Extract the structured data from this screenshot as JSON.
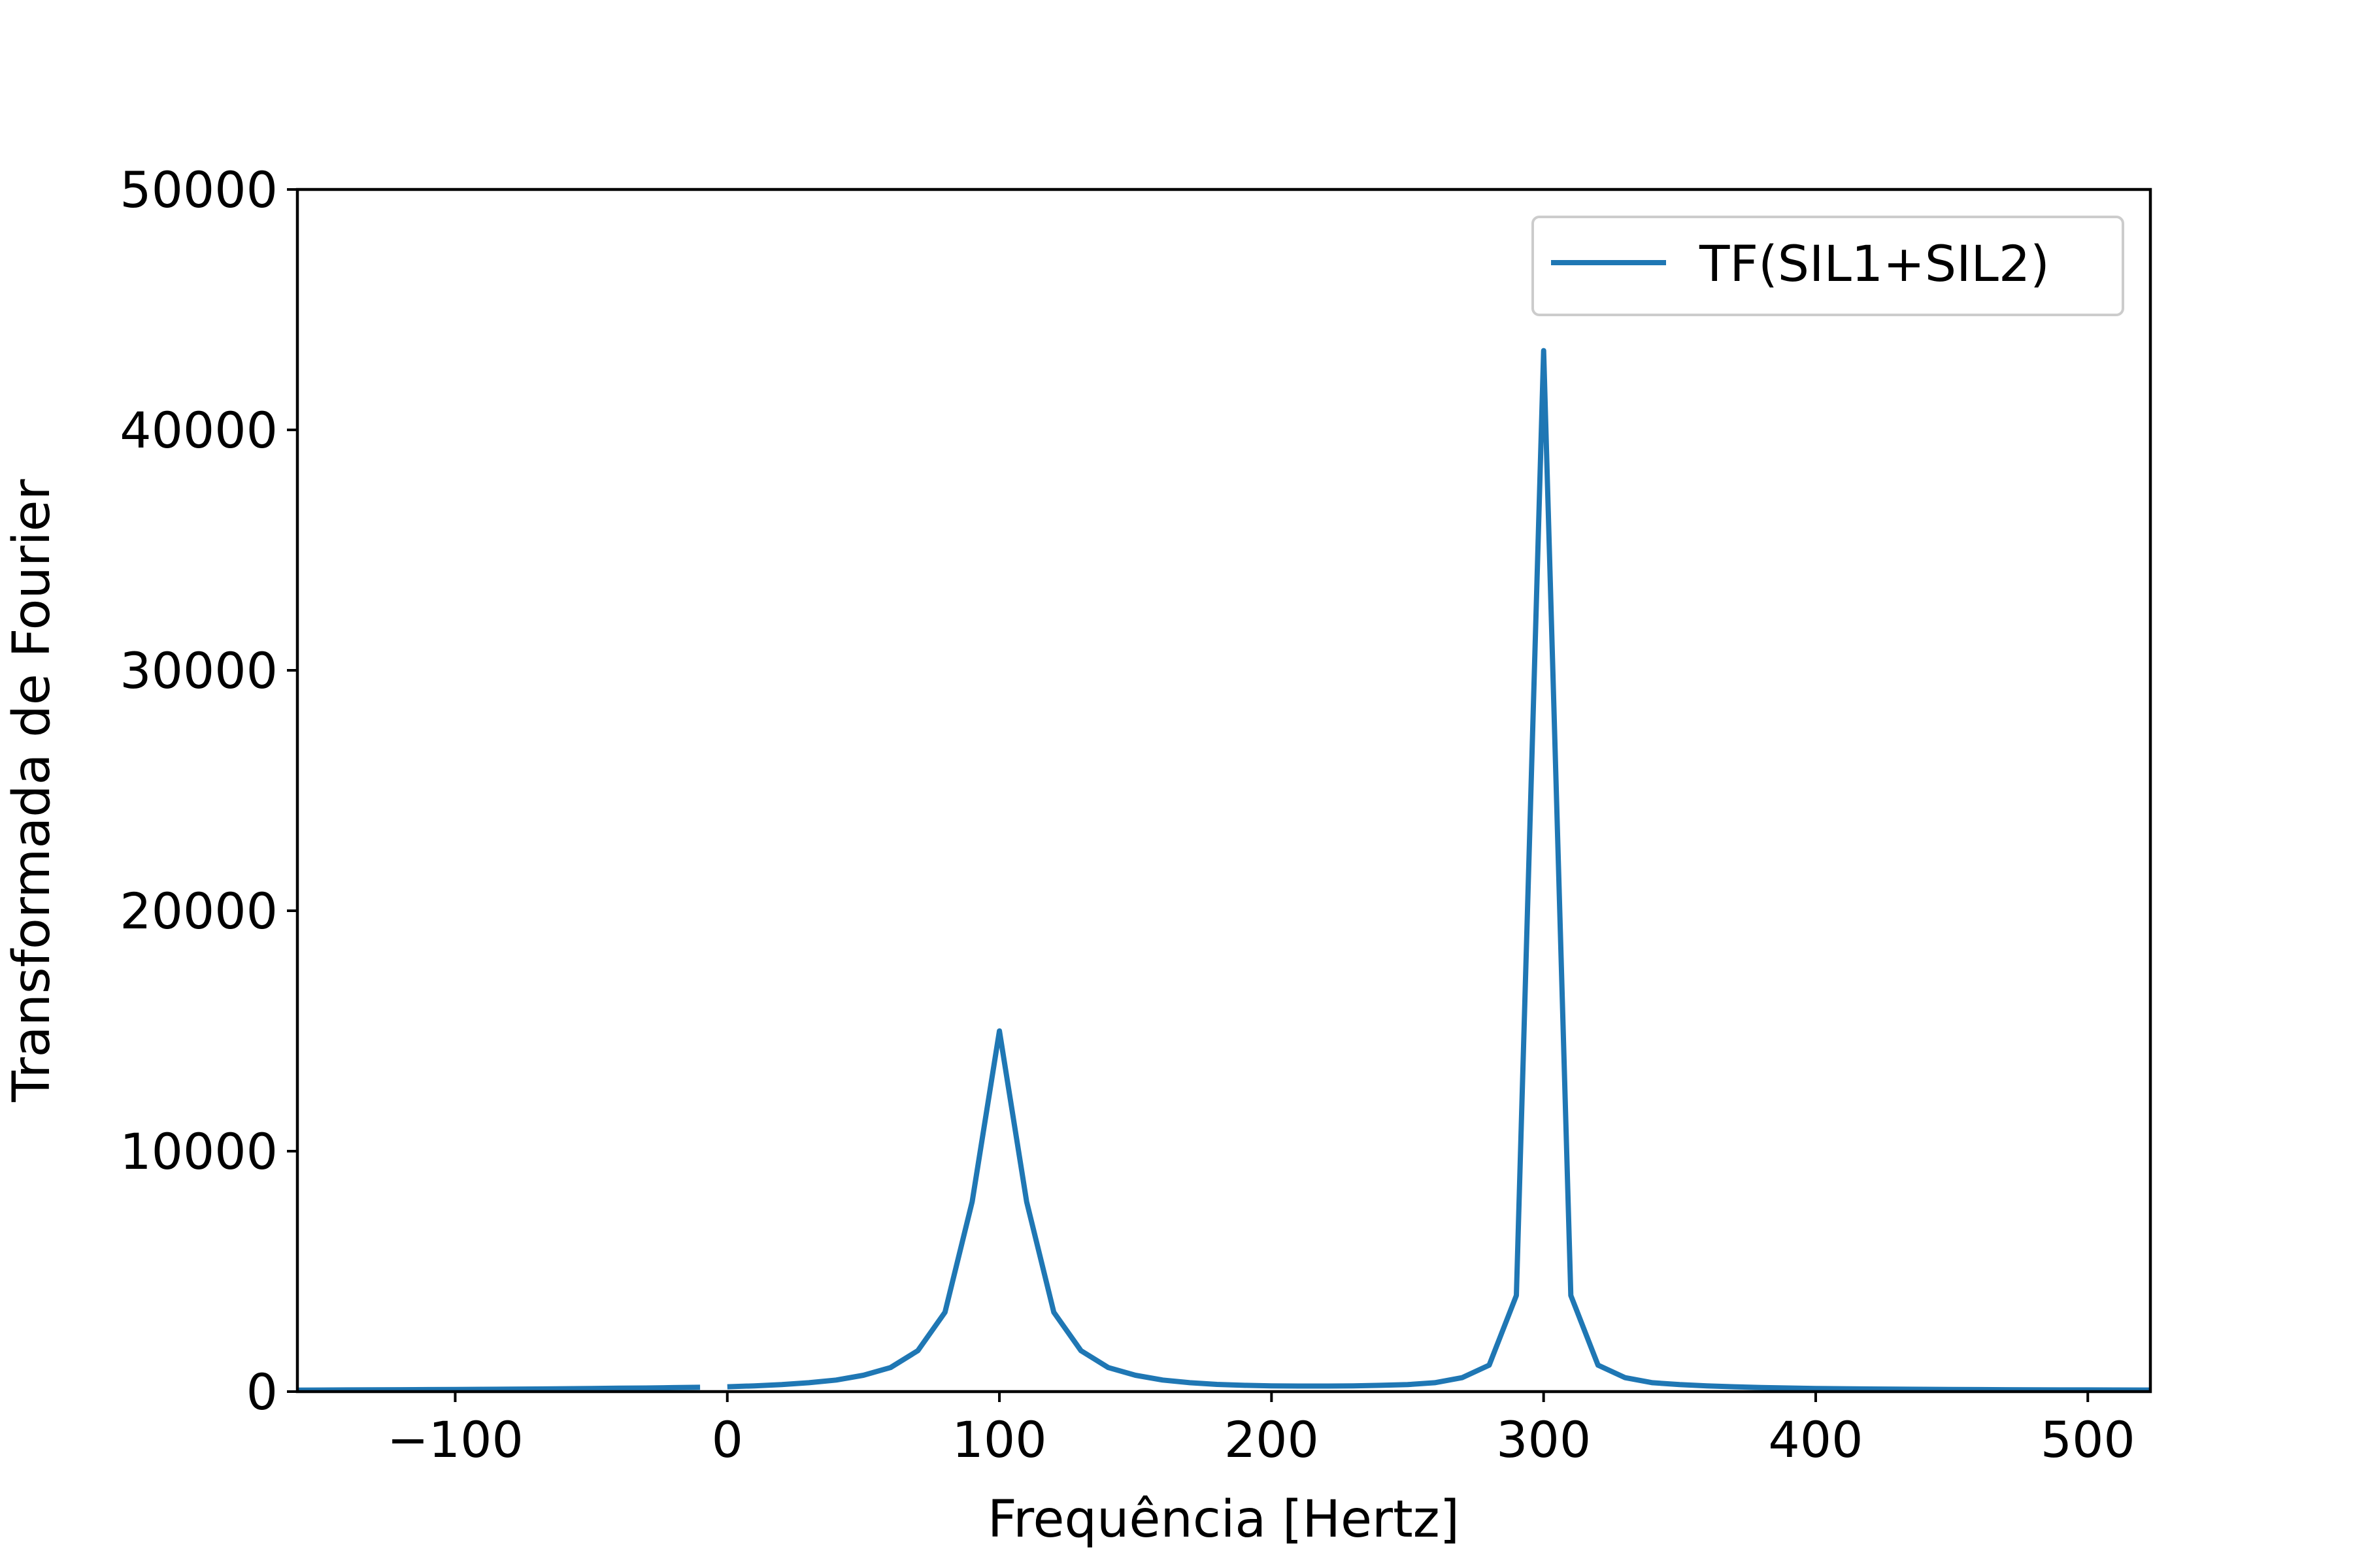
{
  "chart_data": {
    "type": "line",
    "title": "",
    "xlabel": "Frequência [Hertz]",
    "ylabel": "Transformada de Fourier",
    "xlim": [
      -158,
      523
    ],
    "ylim": [
      0,
      50000
    ],
    "xticks": [
      -100,
      0,
      100,
      200,
      300,
      400,
      500
    ],
    "xtick_labels": [
      "−100",
      "0",
      "100",
      "200",
      "300",
      "400",
      "500"
    ],
    "yticks": [
      0,
      10000,
      20000,
      30000,
      40000,
      50000
    ],
    "ytick_labels": [
      "0",
      "10000",
      "20000",
      "30000",
      "40000",
      "50000"
    ],
    "grid": false,
    "legend": {
      "position": "top-right",
      "entries": [
        "TF(SIL1+SIL2)"
      ]
    },
    "series": [
      {
        "name": "TF(SIL1+SIL2)",
        "color": "#1f77b4",
        "segments": [
          {
            "x": [
              -160,
              -150,
              -140,
              -130,
              -120,
              -110,
              -100,
              -90,
              -80,
              -70,
              -60,
              -50,
              -40,
              -30,
              -20,
              -10
            ],
            "y": [
              60,
              65,
              70,
              75,
              80,
              85,
              90,
              95,
              100,
              110,
              120,
              130,
              140,
              150,
              165,
              180
            ]
          },
          {
            "x": [
              0,
              10,
              20,
              30,
              40,
              50,
              60,
              70,
              80,
              90,
              100,
              110,
              120,
              130,
              140,
              150,
              160,
              170,
              180,
              190,
              200,
              210,
              220,
              230,
              240,
              250,
              260,
              270,
              280,
              290,
              300,
              310,
              320,
              330,
              340,
              350,
              360,
              370,
              380,
              390,
              400,
              410,
              420,
              430,
              440,
              450,
              460,
              470,
              480,
              490,
              500,
              510,
              523
            ],
            "y": [
              200,
              240,
              290,
              370,
              480,
              680,
              1000,
              1700,
              3300,
              7900,
              15000,
              7900,
              3300,
              1700,
              1000,
              680,
              480,
              370,
              300,
              260,
              240,
              230,
              230,
              240,
              260,
              290,
              370,
              580,
              1100,
              4000,
              43300,
              4000,
              1100,
              580,
              370,
              290,
              240,
              200,
              170,
              150,
              130,
              120,
              110,
              100,
              95,
              90,
              85,
              80,
              75,
              72,
              70,
              68,
              65
            ]
          }
        ]
      }
    ]
  }
}
